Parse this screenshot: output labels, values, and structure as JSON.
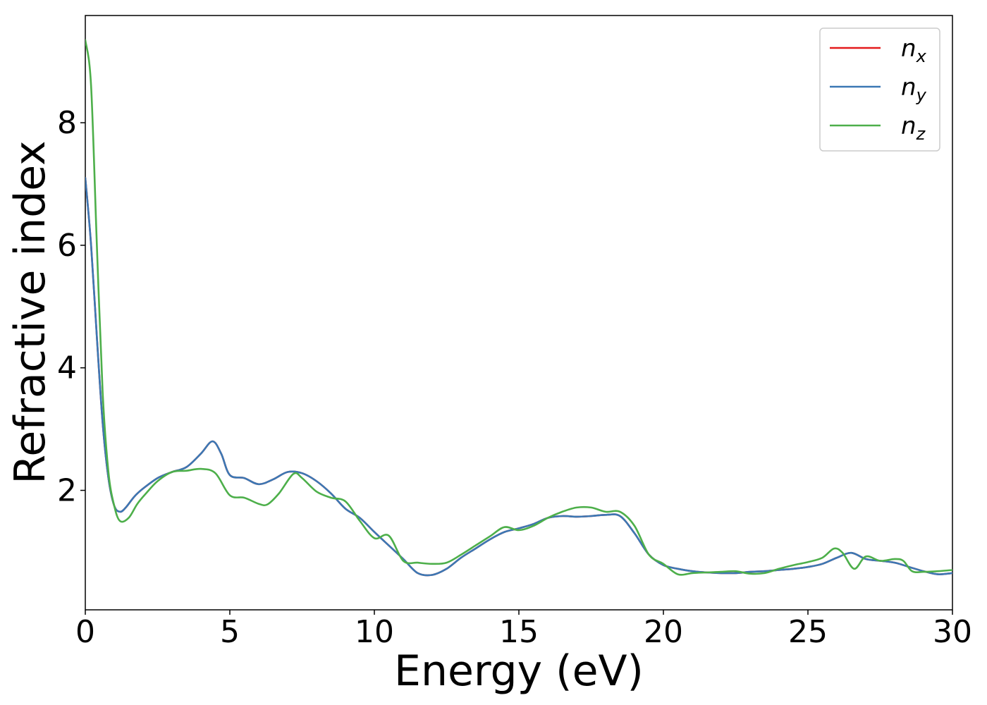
{
  "chart_data": {
    "type": "line",
    "xlabel": "Energy (eV)",
    "ylabel": "Refractive index",
    "xlim": [
      0,
      30
    ],
    "ylim": [
      0.05,
      9.75
    ],
    "xticks": [
      "0",
      "5",
      "10",
      "15",
      "20",
      "25",
      "30"
    ],
    "yticks": [
      "2",
      "4",
      "6",
      "8"
    ],
    "grid": false,
    "legend_position": "top-right",
    "series": [
      {
        "name": "n",
        "subscript": "x",
        "color": "#e41a1c",
        "x": [
          0,
          0.2,
          0.4,
          0.6,
          0.8,
          1.0,
          1.2,
          1.4,
          1.7,
          2.0,
          2.5,
          3.0,
          3.5,
          4.0,
          4.4,
          4.7,
          5.0,
          5.5,
          6.0,
          6.5,
          7.0,
          7.5,
          8.0,
          8.5,
          9.0,
          9.5,
          10.0,
          10.5,
          11.0,
          11.5,
          12.0,
          12.5,
          13.0,
          13.5,
          14.0,
          14.5,
          15.0,
          15.5,
          16.0,
          16.5,
          17.0,
          17.5,
          18.0,
          18.5,
          19.0,
          19.5,
          20.0,
          20.5,
          21.0,
          21.5,
          22.0,
          22.5,
          23.0,
          23.5,
          24.0,
          24.5,
          25.0,
          25.5,
          26.0,
          26.5,
          27.0,
          27.5,
          28.0,
          28.5,
          29.0,
          29.5,
          30.0
        ],
        "y": [
          7.1,
          6.0,
          4.5,
          3.1,
          2.2,
          1.75,
          1.65,
          1.72,
          1.9,
          2.03,
          2.2,
          2.3,
          2.38,
          2.6,
          2.8,
          2.6,
          2.25,
          2.2,
          2.1,
          2.18,
          2.3,
          2.28,
          2.15,
          1.95,
          1.7,
          1.55,
          1.32,
          1.1,
          0.88,
          0.65,
          0.62,
          0.72,
          0.9,
          1.05,
          1.2,
          1.32,
          1.38,
          1.45,
          1.55,
          1.58,
          1.57,
          1.58,
          1.6,
          1.58,
          1.3,
          0.95,
          0.78,
          0.72,
          0.68,
          0.66,
          0.65,
          0.65,
          0.67,
          0.68,
          0.7,
          0.72,
          0.75,
          0.8,
          0.9,
          0.98,
          0.88,
          0.85,
          0.82,
          0.75,
          0.68,
          0.63,
          0.65
        ]
      },
      {
        "name": "n",
        "subscript": "y",
        "color": "#3b78b4",
        "x": [
          0,
          0.2,
          0.4,
          0.6,
          0.8,
          1.0,
          1.2,
          1.4,
          1.7,
          2.0,
          2.5,
          3.0,
          3.5,
          4.0,
          4.4,
          4.7,
          5.0,
          5.5,
          6.0,
          6.5,
          7.0,
          7.5,
          8.0,
          8.5,
          9.0,
          9.5,
          10.0,
          10.5,
          11.0,
          11.5,
          12.0,
          12.5,
          13.0,
          13.5,
          14.0,
          14.5,
          15.0,
          15.5,
          16.0,
          16.5,
          17.0,
          17.5,
          18.0,
          18.5,
          19.0,
          19.5,
          20.0,
          20.5,
          21.0,
          21.5,
          22.0,
          22.5,
          23.0,
          23.5,
          24.0,
          24.5,
          25.0,
          25.5,
          26.0,
          26.5,
          27.0,
          27.5,
          28.0,
          28.5,
          29.0,
          29.5,
          30.0
        ],
        "y": [
          7.1,
          6.0,
          4.5,
          3.1,
          2.2,
          1.75,
          1.65,
          1.72,
          1.9,
          2.03,
          2.2,
          2.3,
          2.38,
          2.6,
          2.8,
          2.6,
          2.25,
          2.2,
          2.1,
          2.18,
          2.3,
          2.28,
          2.15,
          1.95,
          1.7,
          1.55,
          1.32,
          1.1,
          0.88,
          0.65,
          0.62,
          0.72,
          0.9,
          1.05,
          1.2,
          1.32,
          1.38,
          1.45,
          1.55,
          1.58,
          1.57,
          1.58,
          1.6,
          1.58,
          1.3,
          0.95,
          0.78,
          0.72,
          0.68,
          0.66,
          0.65,
          0.65,
          0.67,
          0.68,
          0.7,
          0.72,
          0.75,
          0.8,
          0.9,
          0.98,
          0.88,
          0.85,
          0.82,
          0.75,
          0.68,
          0.63,
          0.65
        ]
      },
      {
        "name": "n",
        "subscript": "z",
        "color": "#4daf4a",
        "x": [
          0,
          0.2,
          0.4,
          0.6,
          0.8,
          1.0,
          1.2,
          1.5,
          1.8,
          2.1,
          2.5,
          3.0,
          3.5,
          4.0,
          4.5,
          5.0,
          5.5,
          6.0,
          6.3,
          6.7,
          7.2,
          7.5,
          8.0,
          8.5,
          9.0,
          9.5,
          10.0,
          10.5,
          11.0,
          11.5,
          12.0,
          12.5,
          13.0,
          13.5,
          14.0,
          14.5,
          15.0,
          15.5,
          16.0,
          16.5,
          17.0,
          17.5,
          18.0,
          18.5,
          19.0,
          19.5,
          20.0,
          20.5,
          21.0,
          21.5,
          22.0,
          22.5,
          23.0,
          23.5,
          24.0,
          24.5,
          25.0,
          25.5,
          25.9,
          26.2,
          26.6,
          27.0,
          27.5,
          28.0,
          28.3,
          28.6,
          29.0,
          29.5,
          30.0
        ],
        "y": [
          9.35,
          8.6,
          6.0,
          3.6,
          2.3,
          1.75,
          1.5,
          1.55,
          1.78,
          1.95,
          2.15,
          2.3,
          2.32,
          2.35,
          2.28,
          1.92,
          1.88,
          1.78,
          1.77,
          1.95,
          2.27,
          2.2,
          1.98,
          1.88,
          1.82,
          1.5,
          1.22,
          1.26,
          0.85,
          0.82,
          0.8,
          0.82,
          0.95,
          1.1,
          1.25,
          1.4,
          1.35,
          1.42,
          1.55,
          1.65,
          1.72,
          1.72,
          1.65,
          1.65,
          1.42,
          0.95,
          0.8,
          0.63,
          0.65,
          0.66,
          0.67,
          0.68,
          0.64,
          0.65,
          0.72,
          0.78,
          0.83,
          0.9,
          1.05,
          0.98,
          0.72,
          0.92,
          0.85,
          0.88,
          0.85,
          0.68,
          0.67,
          0.68,
          0.7
        ]
      }
    ]
  }
}
